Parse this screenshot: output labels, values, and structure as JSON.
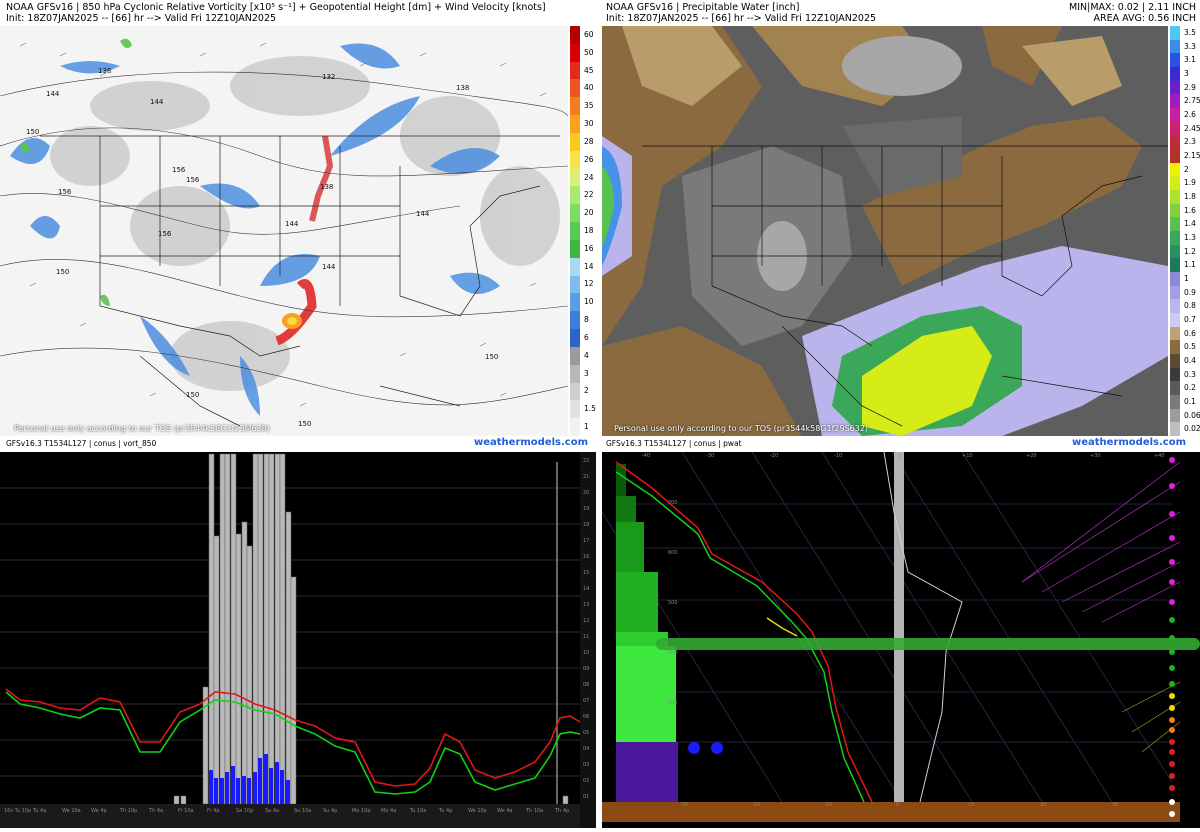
{
  "left_map": {
    "header_line1": "NOAA GFSv16 |  850 hPa Cyclonic Relative Vorticity [x10⁵ s⁻¹] + Geopotential Height [dm] + Wind Velocity [knots]",
    "header_line2": "Init: 18Z07JAN2025 -- [66] hr --> Valid Fri 12Z10JAN2025",
    "tos": "Personal use only according to our TOS (pr3544k58G1f23M628)",
    "footer": "GFSv16.3 T1534L127 | conus | vort_850",
    "watermark": "weathermodels.com",
    "height_labels": [
      "138",
      "144",
      "144",
      "132",
      "138",
      "150",
      "156",
      "156",
      "156",
      "156",
      "138",
      "144",
      "144",
      "144",
      "150",
      "150",
      "150",
      "150"
    ],
    "colorbar_labels": [
      "60",
      "50",
      "45",
      "40",
      "35",
      "30",
      "28",
      "26",
      "24",
      "22",
      "20",
      "18",
      "16",
      "14",
      "12",
      "10",
      "8",
      "6",
      "4",
      "3",
      "2",
      "1.5",
      "1"
    ],
    "colorbar_colors": [
      "#b40000",
      "#d60000",
      "#e42a1a",
      "#ee5520",
      "#f57d20",
      "#f9a31c",
      "#fbc81e",
      "#f6e44a",
      "#d8f07a",
      "#a8ea6e",
      "#7cdc64",
      "#58ca54",
      "#3db845",
      "#aad7f3",
      "#7fbcee",
      "#5b9de4",
      "#3d7fd8",
      "#2f62c4",
      "#9a9a9a",
      "#b8b8b8",
      "#cfcfcf",
      "#e2e2e2",
      "#f2f2f2"
    ]
  },
  "right_map": {
    "header_line1": "NOAA GFSv16 | Precipitable Water [inch]",
    "header_line2": "Init: 18Z07JAN2025 -- [66] hr --> Valid Fri 12Z10JAN2025",
    "minmax": "MIN|MAX: 0.02 | 2.11 INCH",
    "area_avg": "AREA AVG: 0.56 INCH",
    "tos": "Personal use only according to our TOS (pr3544k58G1f29S632)",
    "footer": "GFSv16.3 T1534L127 | conus | pwat",
    "watermark": "weathermodels.com",
    "colorbar_labels": [
      "3.5",
      "3.3",
      "3.1",
      "3",
      "2.9",
      "2.75",
      "2.6",
      "2.45",
      "2.3",
      "2.15",
      "2",
      "1.9",
      "1.8",
      "1.6",
      "1.4",
      "1.3",
      "1.2",
      "1.1",
      "1",
      "0.9",
      "0.8",
      "0.7",
      "0.6",
      "0.5",
      "0.4",
      "0.3",
      "0.2",
      "0.1",
      "0.06",
      "0.02"
    ],
    "colorbar_colors": [
      "#4ec6f0",
      "#3a8ee8",
      "#2a52e0",
      "#3a2ad0",
      "#6a20c8",
      "#a01cb8",
      "#c81ea0",
      "#d02070",
      "#c02a3a",
      "#b43228",
      "#f0f000",
      "#d6ec18",
      "#aee030",
      "#82d040",
      "#58c050",
      "#3aa858",
      "#2a9060",
      "#1e7860",
      "#8a88d8",
      "#a2a0e4",
      "#b8b6ec",
      "#cecbf2",
      "#bfa07c",
      "#8d6a3e",
      "#5e4a34",
      "#3a3a3a",
      "#5a5a5a",
      "#7a7a7a",
      "#9c9c9c",
      "#bebebe"
    ]
  },
  "meteogram": {
    "x_labels": [
      "16z\nTu 10p",
      "Tu 4a",
      "We 10a",
      "We 4p",
      "Th 10p",
      "Th 4a",
      "Fr 10a",
      "Fr 4p",
      "Sa 10p",
      "Sa 4a",
      "Su 10a",
      "Su 4p",
      "Mo 10p",
      "Mo 4a",
      "Tu 10a",
      "Tu 4p",
      "We 10p",
      "We 4a",
      "Th 10a",
      "Th 4p"
    ],
    "right_labels": [
      "22",
      "21",
      "20",
      "19",
      "18",
      "17",
      "16",
      "15",
      "14",
      "13",
      "12",
      "11",
      "10",
      "09",
      "08",
      "07",
      "06",
      "05",
      "04",
      "03",
      "02",
      "01"
    ]
  },
  "sounding": {
    "top_labels": [
      "-40",
      "-30",
      "-20",
      "-10",
      "0",
      "+10",
      "+20",
      "+30",
      "+40"
    ],
    "bottom_labels": [
      "-30",
      "-20",
      "-10",
      "0",
      "10",
      "20",
      "30"
    ],
    "pressure_labels": [
      "700",
      "600",
      "500",
      "400",
      "300"
    ]
  }
}
